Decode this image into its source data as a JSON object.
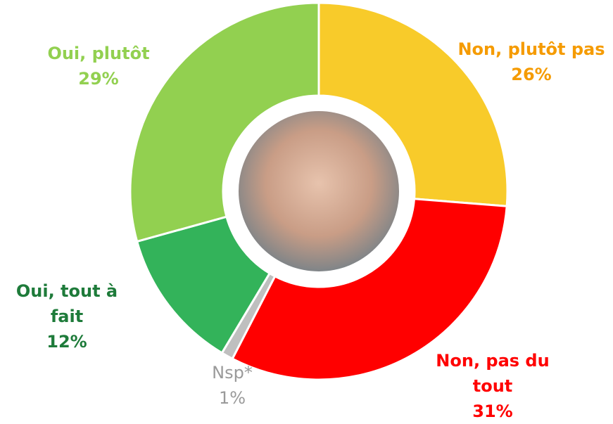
{
  "chart_data": {
    "type": "donut",
    "categories": [
      "Non, plutôt pas",
      "Non, pas du tout",
      "Nsp*",
      "Oui, tout à fait",
      "Oui, plutôt"
    ],
    "values": [
      26,
      31,
      1,
      12,
      29
    ],
    "value_labels": [
      "26%",
      "31%",
      "1%",
      "12%",
      "29%"
    ],
    "colors": [
      "#F8CB2A",
      "#FF0000",
      "#BFBFBF",
      "#33B35A",
      "#92D050"
    ],
    "label_colors": [
      "#F59B00",
      "#FF0000",
      "#9A9A9A",
      "#1E7B3A",
      "#92D050"
    ]
  }
}
